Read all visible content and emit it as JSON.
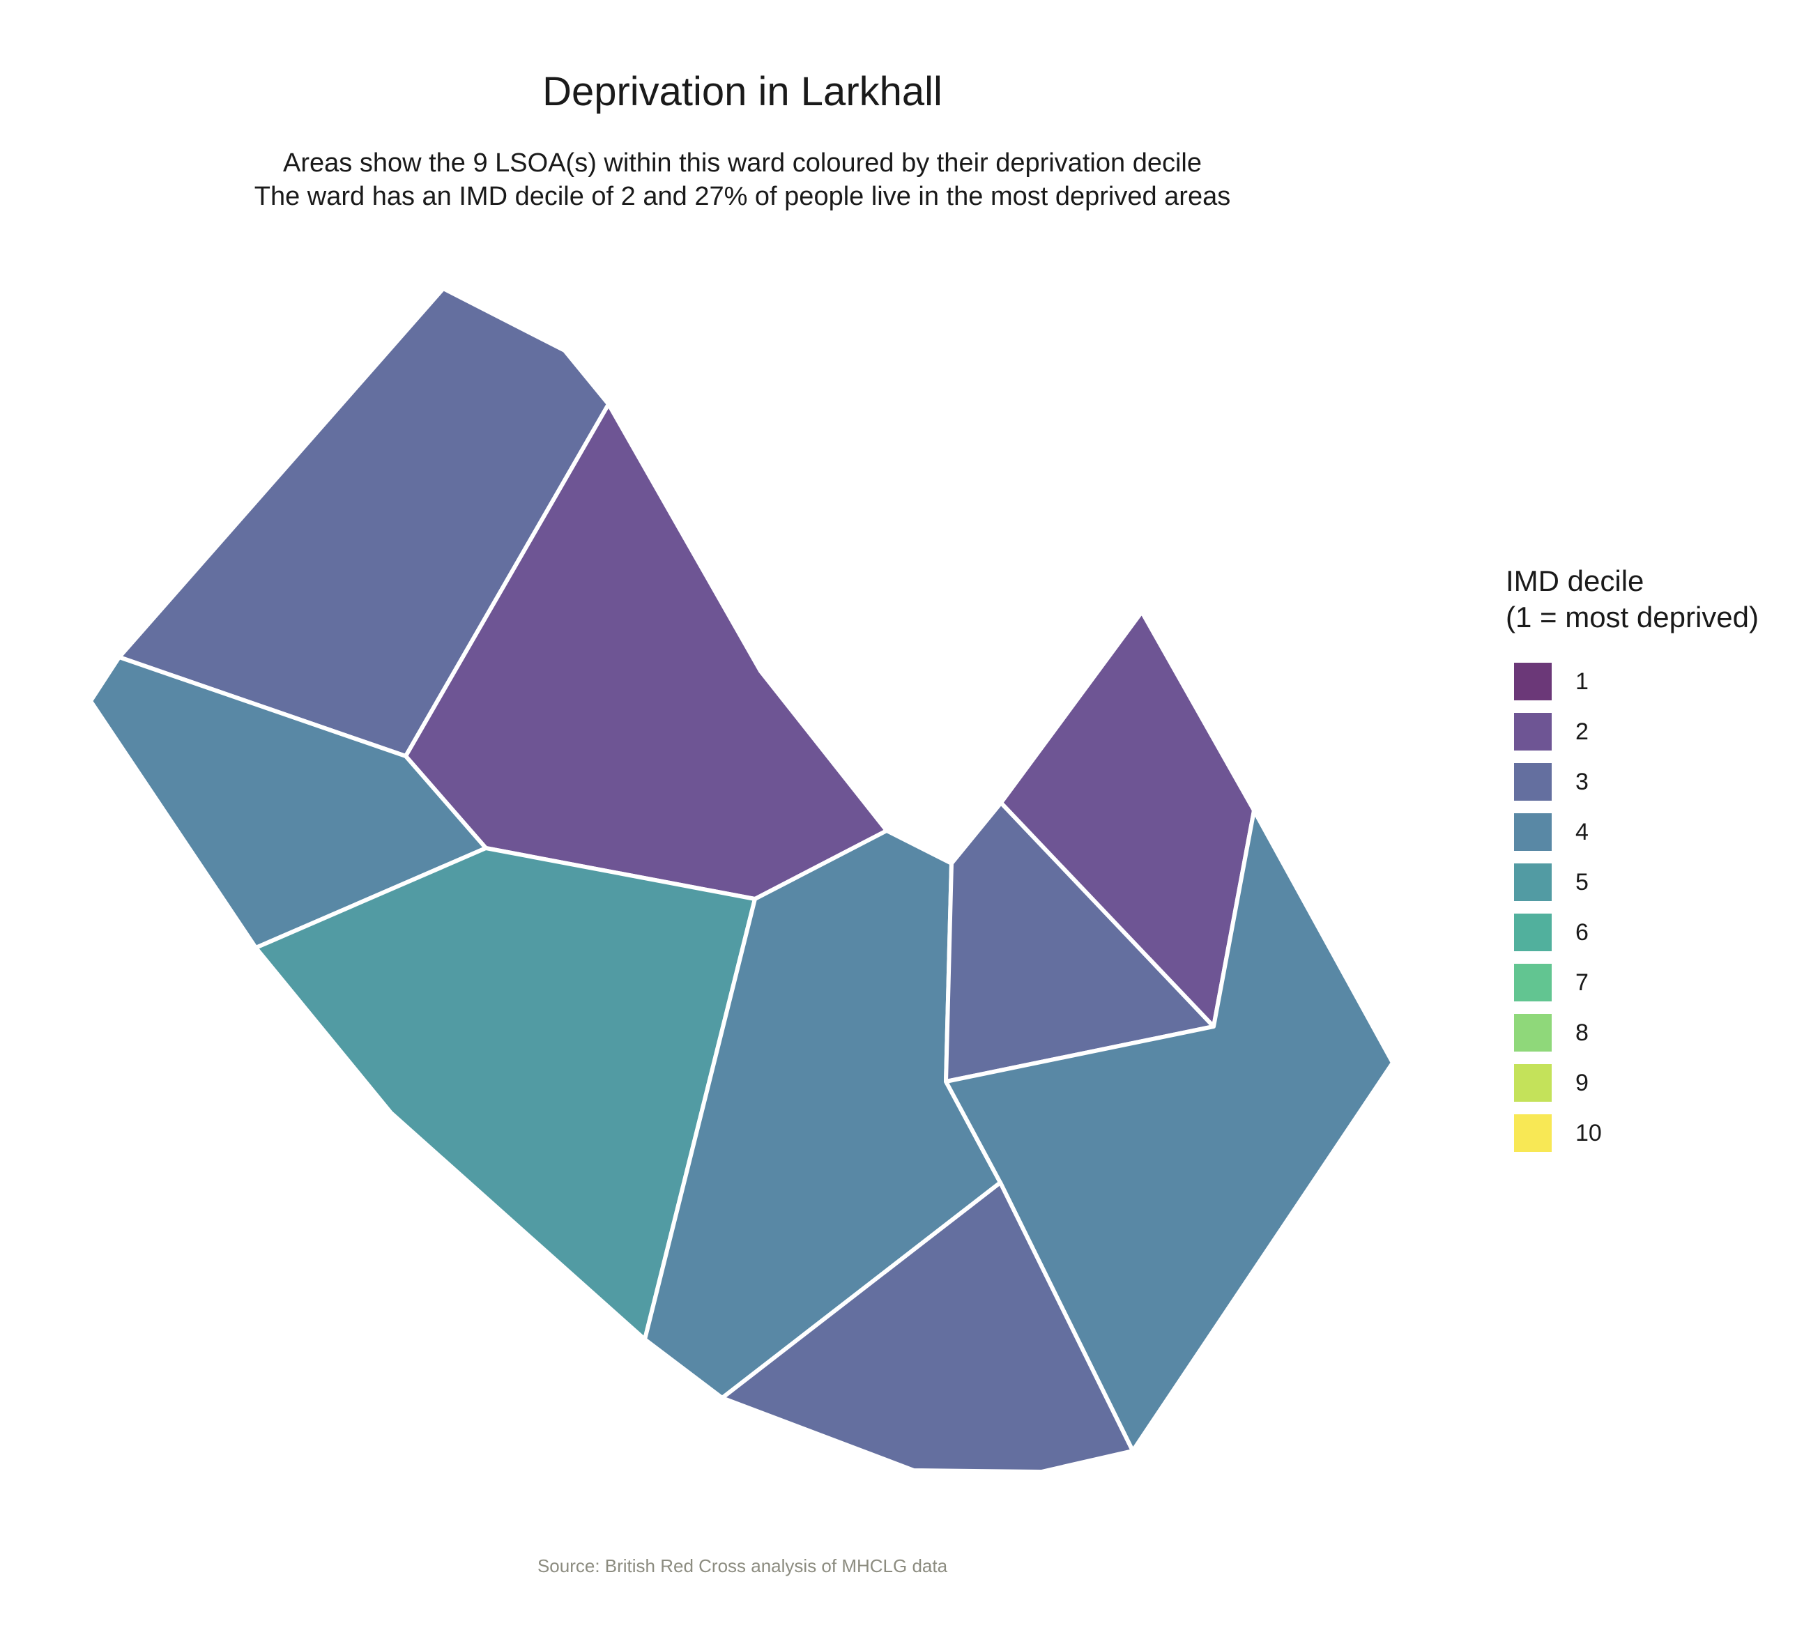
{
  "title": "Deprivation in Larkhall",
  "subtitle": [
    "Areas show the 9 LSOA(s) within this ward coloured by their deprivation decile",
    "The ward has an IMD decile of 2 and 27% of people live in the most deprived areas"
  ],
  "caption": "Source: British Red Cross analysis of MHCLG data",
  "legend": {
    "title_lines": [
      "IMD decile",
      "(1 = most deprived)"
    ],
    "items": [
      {
        "label": "1",
        "color": "#6b3878"
      },
      {
        "label": "2",
        "color": "#6e5594"
      },
      {
        "label": "3",
        "color": "#646f9f"
      },
      {
        "label": "4",
        "color": "#5988a5"
      },
      {
        "label": "5",
        "color": "#529ba3"
      },
      {
        "label": "6",
        "color": "#51b09d"
      },
      {
        "label": "7",
        "color": "#62c591"
      },
      {
        "label": "8",
        "color": "#8fd87a"
      },
      {
        "label": "9",
        "color": "#c4e25a"
      },
      {
        "label": "10",
        "color": "#f8e855"
      }
    ]
  },
  "areas": [
    {
      "name": "lsoa-north-west",
      "decile": 3
    },
    {
      "name": "lsoa-north-central",
      "decile": 2
    },
    {
      "name": "lsoa-west",
      "decile": 4
    },
    {
      "name": "lsoa-south-west",
      "decile": 5
    },
    {
      "name": "lsoa-central",
      "decile": 4
    },
    {
      "name": "lsoa-east-small",
      "decile": 3
    },
    {
      "name": "lsoa-north-east",
      "decile": 2
    },
    {
      "name": "lsoa-south-east",
      "decile": 4
    },
    {
      "name": "lsoa-south",
      "decile": 3
    }
  ]
}
